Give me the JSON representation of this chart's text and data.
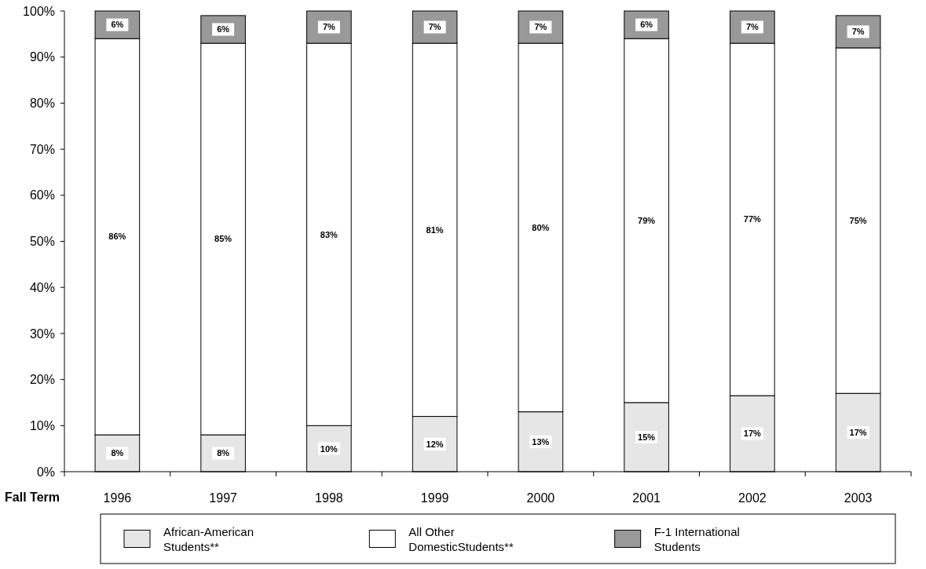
{
  "chart_data": {
    "type": "bar",
    "stacked": true,
    "xlabel": "Fall Term",
    "categories": [
      "1996",
      "1997",
      "1998",
      "1999",
      "2000",
      "2001",
      "2002",
      "2003"
    ],
    "series": [
      {
        "name": "African-American Students**",
        "color": "#e6e6e6",
        "values": [
          8,
          8,
          10,
          12,
          13,
          15,
          16.5,
          17
        ],
        "value_labels": [
          "8%",
          "8%",
          "10%",
          "12%",
          "13%",
          "15%",
          "17%",
          "17%"
        ]
      },
      {
        "name": "All Other DomesticStudents**",
        "color": "#ffffff",
        "values": [
          86,
          85,
          83,
          81,
          80,
          79,
          76.5,
          75
        ],
        "value_labels": [
          "86%",
          "85%",
          "83%",
          "81%",
          "80%",
          "79%",
          "77%",
          "75%"
        ]
      },
      {
        "name": "F-1 International Students",
        "color": "#999999",
        "values": [
          6,
          6,
          7,
          7,
          7,
          6,
          7,
          7
        ],
        "value_labels": [
          "6%",
          "6%",
          "7%",
          "7%",
          "7%",
          "6%",
          "7%",
          "7%"
        ]
      }
    ],
    "ylim": [
      0,
      100
    ],
    "yticks": [
      {
        "value": 0,
        "label": "0%"
      },
      {
        "value": 10,
        "label": "10%"
      },
      {
        "value": 20,
        "label": "20%"
      },
      {
        "value": 30,
        "label": "30%"
      },
      {
        "value": 40,
        "label": "40%"
      },
      {
        "value": 50,
        "label": "50%"
      },
      {
        "value": 60,
        "label": "60%"
      },
      {
        "value": 70,
        "label": "70%"
      },
      {
        "value": 80,
        "label": "80%"
      },
      {
        "value": 90,
        "label": "90%"
      },
      {
        "value": 100,
        "label": "100%"
      }
    ],
    "legend": "bottom",
    "grid": false
  }
}
